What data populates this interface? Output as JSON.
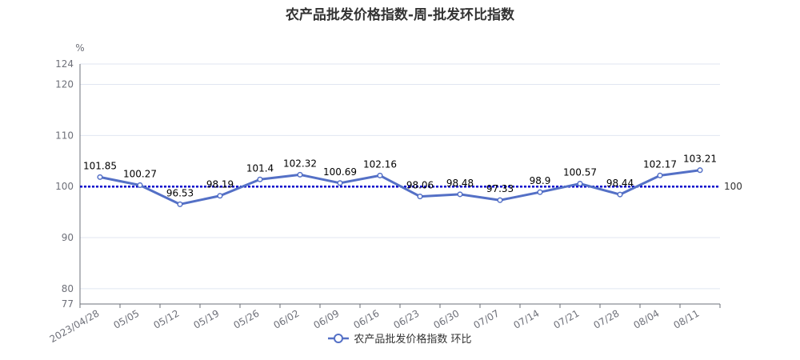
{
  "title": "农产品批发价格指数-周-批发环比指数",
  "colors": {
    "series": "#5470c6",
    "reference": "#0000cc",
    "axis": "#6e7079",
    "grid": "#e0e6f1",
    "text": "#333333"
  },
  "chart_data": {
    "type": "line",
    "title": "农产品批发价格指数-周-批发环比指数",
    "y_unit": "%",
    "categories": [
      "2023/04/28",
      "05/05",
      "05/12",
      "05/19",
      "05/26",
      "06/02",
      "06/09",
      "06/16",
      "06/23",
      "06/30",
      "07/07",
      "07/14",
      "07/21",
      "07/28",
      "08/04",
      "08/11"
    ],
    "series": [
      {
        "name": "农产品批发价格指数 环比",
        "values": [
          101.85,
          100.27,
          96.53,
          98.19,
          101.4,
          102.32,
          100.69,
          102.16,
          98.06,
          98.48,
          97.33,
          98.9,
          100.57,
          98.44,
          102.17,
          103.21
        ],
        "labels": [
          "101.85",
          "100.27",
          "96.53",
          "98.19",
          "101.4",
          "102.32",
          "100.69",
          "102.16",
          "98.06",
          "98.48",
          "97.33",
          "98.9",
          "100.57",
          "98.44",
          "102.17",
          "103.21"
        ]
      }
    ],
    "ylim": [
      77,
      124
    ],
    "yticks": [
      77,
      80,
      90,
      100,
      110,
      120,
      124
    ],
    "reference_line": {
      "value": 100,
      "label": "100"
    },
    "grid": true,
    "legend_position": "bottom-center"
  }
}
